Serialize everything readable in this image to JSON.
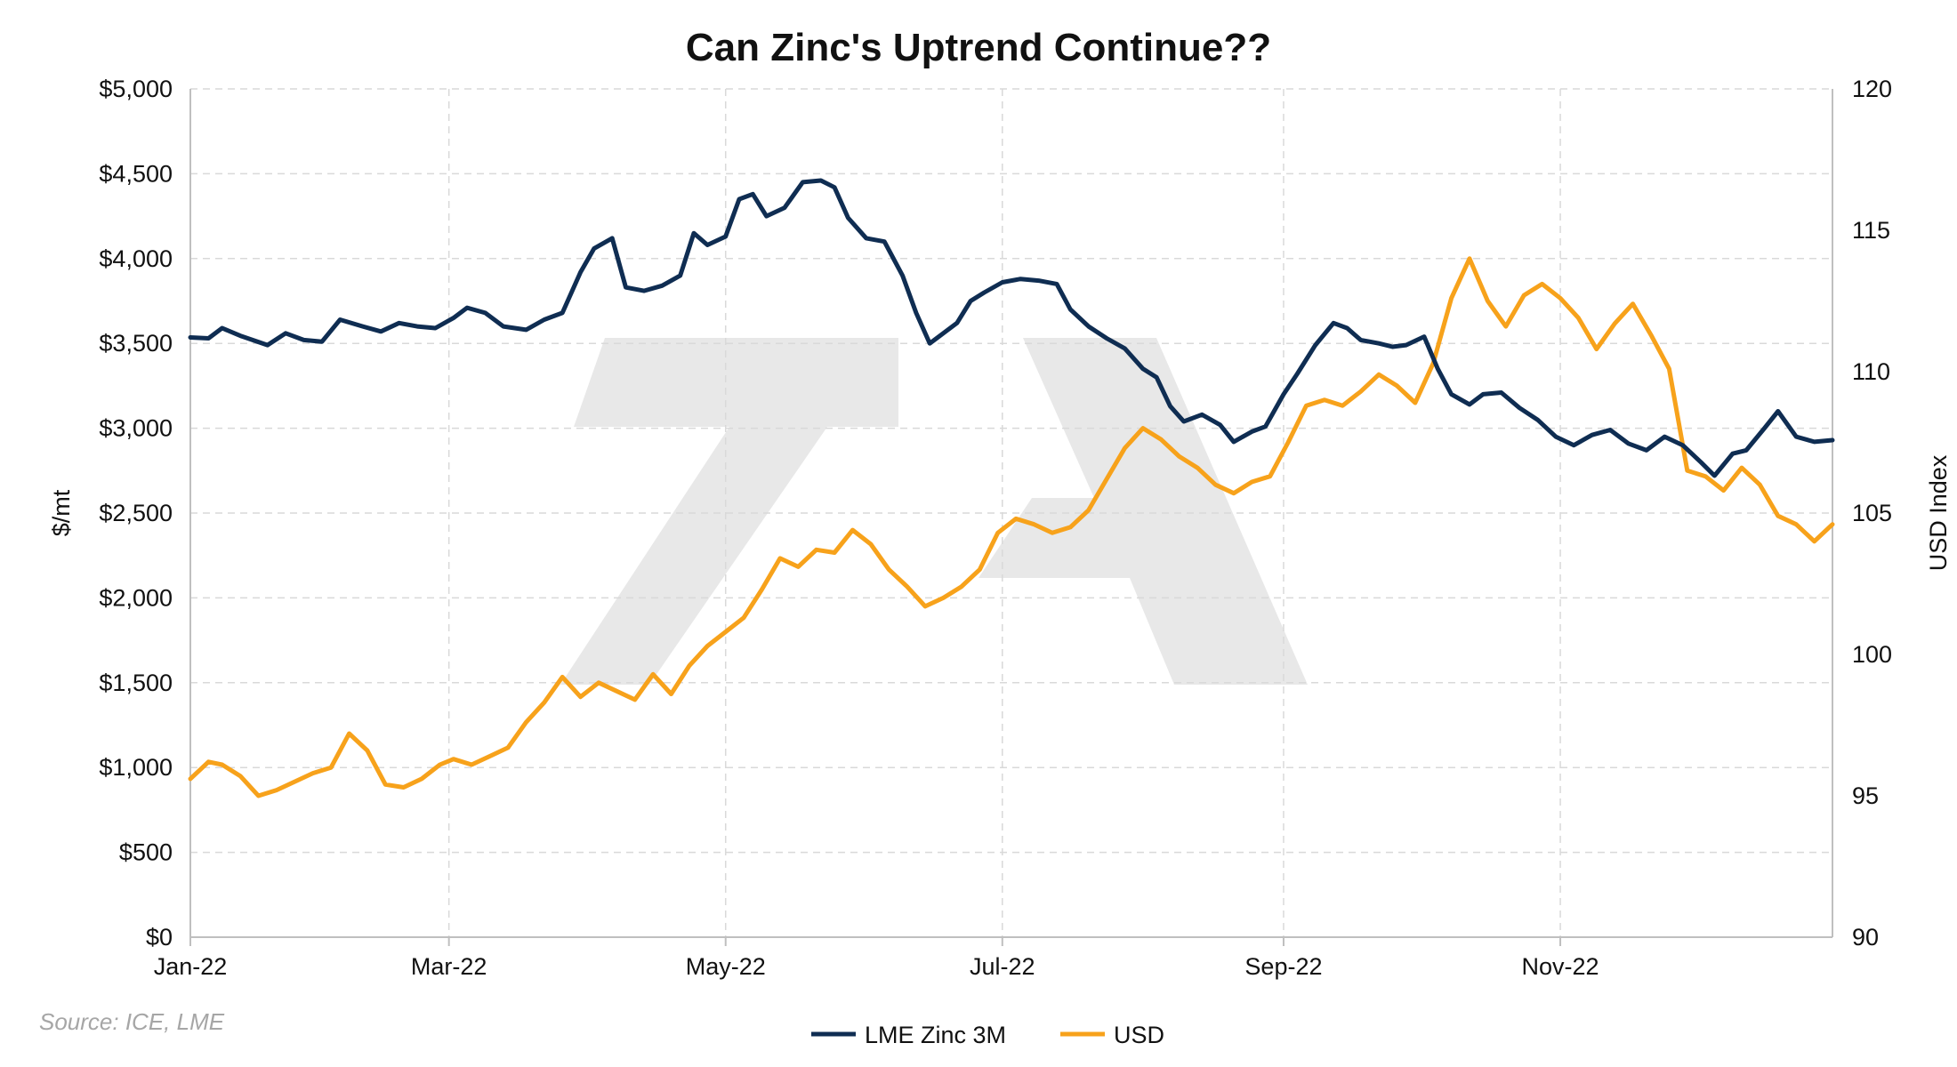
{
  "chart_data": {
    "type": "line",
    "title": "Can Zinc's Uptrend Continue??",
    "source": "Source: ICE, LME",
    "ylabel_left": "$/mt",
    "ylabel_right": "USD Index",
    "x_ticks": [
      "Jan-22",
      "Mar-22",
      "May-22",
      "Jul-22",
      "Sep-22",
      "Nov-22"
    ],
    "x_range": [
      "2022-01-03",
      "2022-12-31"
    ],
    "ylim_left": [
      0,
      5000
    ],
    "ylim_right": [
      90,
      120
    ],
    "y_ticks_left": [
      0,
      500,
      1000,
      1500,
      2000,
      2500,
      3000,
      3500,
      4000,
      4500,
      5000
    ],
    "y_tick_labels_left": [
      "$0",
      "$500",
      "$1,000",
      "$1,500",
      "$2,000",
      "$2,500",
      "$3,000",
      "$3,500",
      "$4,000",
      "$4,500",
      "$5,000"
    ],
    "y_ticks_right": [
      90,
      95,
      100,
      105,
      110,
      115,
      120
    ],
    "y_tick_labels_right": [
      "90",
      "95",
      "100",
      "105",
      "110",
      "115",
      "120"
    ],
    "grid": true,
    "legend_position": "bottom-center",
    "colors": {
      "zinc": "#0f2d52",
      "usd": "#f7a21b",
      "grid": "#d9d9d9",
      "axis": "#bfbfbf",
      "watermark": "#e6e6e6"
    },
    "series": [
      {
        "name": "LME Zinc 3M",
        "axis": "left",
        "points": [
          [
            "2022-01-03",
            3535
          ],
          [
            "2022-01-07",
            3530
          ],
          [
            "2022-01-10",
            3590
          ],
          [
            "2022-01-14",
            3545
          ],
          [
            "2022-01-20",
            3490
          ],
          [
            "2022-01-24",
            3560
          ],
          [
            "2022-01-28",
            3520
          ],
          [
            "2022-02-01",
            3510
          ],
          [
            "2022-02-05",
            3640
          ],
          [
            "2022-02-10",
            3600
          ],
          [
            "2022-02-14",
            3570
          ],
          [
            "2022-02-18",
            3620
          ],
          [
            "2022-02-22",
            3600
          ],
          [
            "2022-02-26",
            3590
          ],
          [
            "2022-03-02",
            3650
          ],
          [
            "2022-03-05",
            3710
          ],
          [
            "2022-03-09",
            3680
          ],
          [
            "2022-03-13",
            3600
          ],
          [
            "2022-03-18",
            3580
          ],
          [
            "2022-03-22",
            3640
          ],
          [
            "2022-03-26",
            3680
          ],
          [
            "2022-03-30",
            3920
          ],
          [
            "2022-04-02",
            4060
          ],
          [
            "2022-04-06",
            4120
          ],
          [
            "2022-04-09",
            3830
          ],
          [
            "2022-04-13",
            3810
          ],
          [
            "2022-04-17",
            3840
          ],
          [
            "2022-04-21",
            3900
          ],
          [
            "2022-04-24",
            4150
          ],
          [
            "2022-04-27",
            4080
          ],
          [
            "2022-05-01",
            4130
          ],
          [
            "2022-05-04",
            4350
          ],
          [
            "2022-05-07",
            4380
          ],
          [
            "2022-05-10",
            4250
          ],
          [
            "2022-05-14",
            4300
          ],
          [
            "2022-05-18",
            4450
          ],
          [
            "2022-05-22",
            4460
          ],
          [
            "2022-05-25",
            4420
          ],
          [
            "2022-05-28",
            4240
          ],
          [
            "2022-06-01",
            4120
          ],
          [
            "2022-06-05",
            4100
          ],
          [
            "2022-06-09",
            3900
          ],
          [
            "2022-06-12",
            3680
          ],
          [
            "2022-06-15",
            3500
          ],
          [
            "2022-06-18",
            3560
          ],
          [
            "2022-06-21",
            3620
          ],
          [
            "2022-06-24",
            3750
          ],
          [
            "2022-06-27",
            3800
          ],
          [
            "2022-07-01",
            3860
          ],
          [
            "2022-07-05",
            3880
          ],
          [
            "2022-07-09",
            3870
          ],
          [
            "2022-07-13",
            3850
          ],
          [
            "2022-07-16",
            3700
          ],
          [
            "2022-07-20",
            3600
          ],
          [
            "2022-07-24",
            3530
          ],
          [
            "2022-07-28",
            3470
          ],
          [
            "2022-08-01",
            3350
          ],
          [
            "2022-08-04",
            3300
          ],
          [
            "2022-08-07",
            3130
          ],
          [
            "2022-08-10",
            3040
          ],
          [
            "2022-08-14",
            3080
          ],
          [
            "2022-08-18",
            3020
          ],
          [
            "2022-08-21",
            2920
          ],
          [
            "2022-08-25",
            2980
          ],
          [
            "2022-08-28",
            3010
          ],
          [
            "2022-09-01",
            3200
          ],
          [
            "2022-09-04",
            3320
          ],
          [
            "2022-09-08",
            3490
          ],
          [
            "2022-09-12",
            3620
          ],
          [
            "2022-09-15",
            3590
          ],
          [
            "2022-09-18",
            3520
          ],
          [
            "2022-09-22",
            3500
          ],
          [
            "2022-09-25",
            3480
          ],
          [
            "2022-09-28",
            3490
          ],
          [
            "2022-10-02",
            3540
          ],
          [
            "2022-10-05",
            3350
          ],
          [
            "2022-10-08",
            3200
          ],
          [
            "2022-10-12",
            3140
          ],
          [
            "2022-10-15",
            3200
          ],
          [
            "2022-10-19",
            3210
          ],
          [
            "2022-10-23",
            3120
          ],
          [
            "2022-10-27",
            3050
          ],
          [
            "2022-10-31",
            2950
          ],
          [
            "2022-11-04",
            2900
          ],
          [
            "2022-11-08",
            2960
          ],
          [
            "2022-11-12",
            2990
          ],
          [
            "2022-11-16",
            2910
          ],
          [
            "2022-11-20",
            2870
          ],
          [
            "2022-11-24",
            2950
          ],
          [
            "2022-11-28",
            2900
          ],
          [
            "2022-12-02",
            2800
          ],
          [
            "2022-12-05",
            2720
          ],
          [
            "2022-12-09",
            2850
          ],
          [
            "2022-12-12",
            2870
          ],
          [
            "2022-12-16",
            3000
          ],
          [
            "2022-12-19",
            3100
          ],
          [
            "2022-12-23",
            2950
          ],
          [
            "2022-12-27",
            2920
          ],
          [
            "2022-12-31",
            2930
          ]
        ]
      },
      {
        "name": "USD",
        "axis": "right",
        "points": [
          [
            "2022-01-03",
            95.6
          ],
          [
            "2022-01-07",
            96.2
          ],
          [
            "2022-01-10",
            96.1
          ],
          [
            "2022-01-14",
            95.7
          ],
          [
            "2022-01-18",
            95.0
          ],
          [
            "2022-01-22",
            95.2
          ],
          [
            "2022-01-26",
            95.5
          ],
          [
            "2022-01-30",
            95.8
          ],
          [
            "2022-02-03",
            96.0
          ],
          [
            "2022-02-07",
            97.2
          ],
          [
            "2022-02-11",
            96.6
          ],
          [
            "2022-02-15",
            95.4
          ],
          [
            "2022-02-19",
            95.3
          ],
          [
            "2022-02-23",
            95.6
          ],
          [
            "2022-02-27",
            96.1
          ],
          [
            "2022-03-02",
            96.3
          ],
          [
            "2022-03-06",
            96.1
          ],
          [
            "2022-03-10",
            96.4
          ],
          [
            "2022-03-14",
            96.7
          ],
          [
            "2022-03-18",
            97.6
          ],
          [
            "2022-03-22",
            98.3
          ],
          [
            "2022-03-26",
            99.2
          ],
          [
            "2022-03-30",
            98.5
          ],
          [
            "2022-04-03",
            99.0
          ],
          [
            "2022-04-07",
            98.7
          ],
          [
            "2022-04-11",
            98.4
          ],
          [
            "2022-04-15",
            99.3
          ],
          [
            "2022-04-19",
            98.6
          ],
          [
            "2022-04-23",
            99.6
          ],
          [
            "2022-04-27",
            100.3
          ],
          [
            "2022-05-01",
            100.8
          ],
          [
            "2022-05-05",
            101.3
          ],
          [
            "2022-05-09",
            102.3
          ],
          [
            "2022-05-13",
            103.4
          ],
          [
            "2022-05-17",
            103.1
          ],
          [
            "2022-05-21",
            103.7
          ],
          [
            "2022-05-25",
            103.6
          ],
          [
            "2022-05-29",
            104.4
          ],
          [
            "2022-06-02",
            103.9
          ],
          [
            "2022-06-06",
            103.0
          ],
          [
            "2022-06-10",
            102.4
          ],
          [
            "2022-06-14",
            101.7
          ],
          [
            "2022-06-18",
            102.0
          ],
          [
            "2022-06-22",
            102.4
          ],
          [
            "2022-06-26",
            103.0
          ],
          [
            "2022-06-30",
            104.3
          ],
          [
            "2022-07-04",
            104.8
          ],
          [
            "2022-07-08",
            104.6
          ],
          [
            "2022-07-12",
            104.3
          ],
          [
            "2022-07-16",
            104.5
          ],
          [
            "2022-07-20",
            105.1
          ],
          [
            "2022-07-24",
            106.2
          ],
          [
            "2022-07-28",
            107.3
          ],
          [
            "2022-08-01",
            108.0
          ],
          [
            "2022-08-05",
            107.6
          ],
          [
            "2022-08-09",
            107.0
          ],
          [
            "2022-08-13",
            106.6
          ],
          [
            "2022-08-17",
            106.0
          ],
          [
            "2022-08-21",
            105.7
          ],
          [
            "2022-08-25",
            106.1
          ],
          [
            "2022-08-29",
            106.3
          ],
          [
            "2022-09-02",
            107.5
          ],
          [
            "2022-09-06",
            108.8
          ],
          [
            "2022-09-10",
            109.0
          ],
          [
            "2022-09-14",
            108.8
          ],
          [
            "2022-09-18",
            109.3
          ],
          [
            "2022-09-22",
            109.9
          ],
          [
            "2022-09-26",
            109.5
          ],
          [
            "2022-09-30",
            108.9
          ],
          [
            "2022-10-04",
            110.3
          ],
          [
            "2022-10-08",
            112.6
          ],
          [
            "2022-10-12",
            114.0
          ],
          [
            "2022-10-16",
            112.5
          ],
          [
            "2022-10-20",
            111.6
          ],
          [
            "2022-10-24",
            112.7
          ],
          [
            "2022-10-28",
            113.1
          ],
          [
            "2022-11-01",
            112.6
          ],
          [
            "2022-11-05",
            111.9
          ],
          [
            "2022-11-09",
            110.8
          ],
          [
            "2022-11-13",
            111.7
          ],
          [
            "2022-11-17",
            112.4
          ],
          [
            "2022-11-21",
            111.3
          ],
          [
            "2022-11-25",
            110.1
          ],
          [
            "2022-11-29",
            106.5
          ],
          [
            "2022-12-03",
            106.3
          ],
          [
            "2022-12-07",
            105.8
          ],
          [
            "2022-12-11",
            106.6
          ],
          [
            "2022-12-15",
            106.0
          ],
          [
            "2022-12-19",
            104.9
          ],
          [
            "2022-12-23",
            104.6
          ],
          [
            "2022-12-27",
            104.0
          ],
          [
            "2022-12-31",
            104.6
          ]
        ]
      }
    ]
  }
}
